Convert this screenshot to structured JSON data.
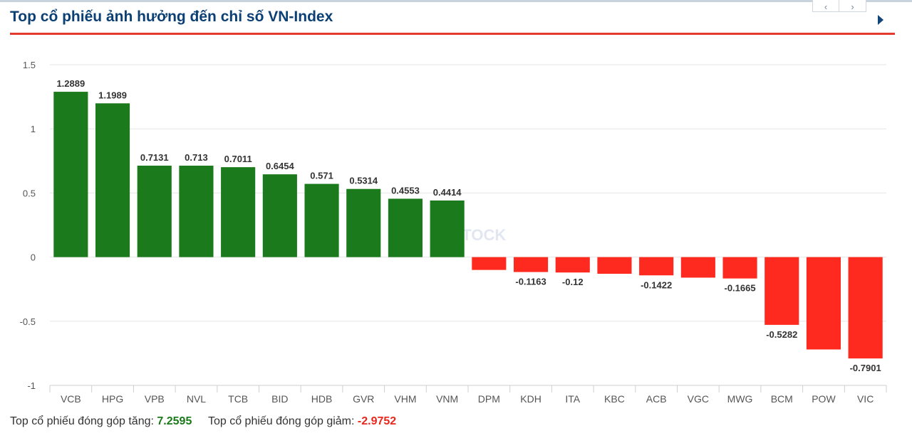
{
  "header": {
    "title": "Top cổ phiếu ảnh hưởng đến chỉ số VN-Index",
    "prev_icon": "chevron-left-icon",
    "next_icon": "chevron-right-icon",
    "expand_icon": "triangle-right-icon"
  },
  "colors": {
    "positive": "#1b7a1b",
    "negative": "#ff2a1f",
    "title": "#0c3f74",
    "rule": "#e23a2e"
  },
  "chart_data": {
    "type": "bar",
    "categories": [
      "VCB",
      "HPG",
      "VPB",
      "NVL",
      "TCB",
      "BID",
      "HDB",
      "GVR",
      "VHM",
      "VNM",
      "DPM",
      "KDH",
      "ITA",
      "KBC",
      "ACB",
      "VGC",
      "MWG",
      "BCM",
      "POW",
      "VIC"
    ],
    "values": [
      1.2889,
      1.1989,
      0.7131,
      0.713,
      0.7011,
      0.6454,
      0.571,
      0.5314,
      0.4553,
      0.4414,
      -0.1,
      -0.1163,
      -0.12,
      -0.13,
      -0.1422,
      -0.16,
      -0.1665,
      -0.5282,
      -0.72,
      -0.7901
    ],
    "labels": [
      "1.2889",
      "1.1989",
      "0.7131",
      "0.713",
      "0.7011",
      "0.6454",
      "0.571",
      "0.5314",
      "0.4553",
      "0.4414",
      "",
      "-0.1163",
      "-0.12",
      "",
      "-0.1422",
      "",
      "-0.1665",
      "-0.5282",
      "",
      "-0.7901"
    ],
    "yticks": [
      "1.5",
      "1",
      "0.5",
      "0",
      "-0.5",
      "-1"
    ],
    "ylim": [
      -1,
      1.5
    ],
    "grid": true,
    "title": "",
    "xlabel": "",
    "ylabel": ""
  },
  "footer": {
    "up_label": "Top cổ phiếu đóng góp tăng:",
    "up_value": "7.2595",
    "down_label": "Top cổ phiếu đóng góp giảm:",
    "down_value": "-2.9752"
  }
}
